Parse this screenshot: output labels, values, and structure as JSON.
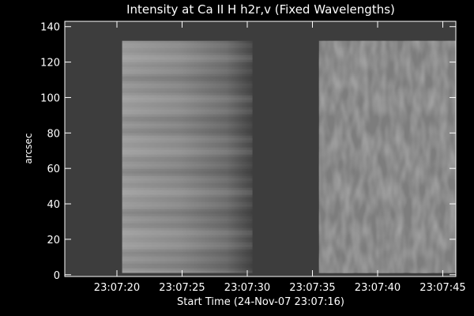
{
  "chart_data": {
    "type": "image",
    "title": "Intensity at Ca II H h2r,v (Fixed Wavelengths)",
    "xlabel": "Start Time (24-Nov-07 23:07:16)",
    "ylabel": "arcsec",
    "xlim": [
      0,
      30
    ],
    "ylim": [
      -1,
      143
    ],
    "xticks": [
      {
        "value": 4,
        "label": "23:07:20"
      },
      {
        "value": 9,
        "label": "23:07:25"
      },
      {
        "value": 14,
        "label": "23:07:30"
      },
      {
        "value": 19,
        "label": "23:07:35"
      },
      {
        "value": 24,
        "label": "23:07:40"
      },
      {
        "value": 29,
        "label": "23:07:45"
      }
    ],
    "yticks": [
      0,
      20,
      40,
      60,
      80,
      100,
      120,
      140
    ],
    "blocks": [
      {
        "x": [
          4.4,
          14.4
        ],
        "y": [
          1,
          132
        ]
      },
      {
        "x": [
          19.5,
          30
        ],
        "y": [
          1,
          132
        ]
      }
    ]
  }
}
